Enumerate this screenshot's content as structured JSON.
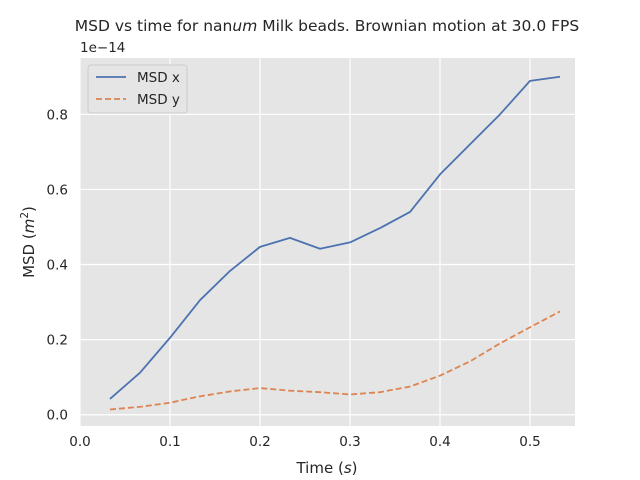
{
  "chart_data": {
    "type": "line",
    "title_parts": [
      "MSD vs time for nan",
      "um",
      " Milk beads. Brownian motion at 30.0 FPS"
    ],
    "xlabel_parts": [
      "Time (",
      "s",
      ")"
    ],
    "ylabel_parts": [
      "MSD (",
      "m",
      "2",
      ")"
    ],
    "offset_text": "1e−14",
    "xlim": [
      0.0,
      0.55
    ],
    "ylim": [
      -0.03,
      0.95
    ],
    "xticks": [
      0.0,
      0.1,
      0.2,
      0.3,
      0.4,
      0.5
    ],
    "xtick_labels": [
      "0.0",
      "0.1",
      "0.2",
      "0.3",
      "0.4",
      "0.5"
    ],
    "yticks": [
      0.0,
      0.2,
      0.4,
      0.6,
      0.8
    ],
    "ytick_labels": [
      "0.0",
      "0.2",
      "0.4",
      "0.6",
      "0.8"
    ],
    "grid": true,
    "legend_position": "upper-left",
    "x": [
      0.0333,
      0.0667,
      0.1,
      0.1333,
      0.1667,
      0.2,
      0.2333,
      0.2667,
      0.3,
      0.3333,
      0.3667,
      0.4,
      0.4333,
      0.4667,
      0.5,
      0.5333
    ],
    "series": [
      {
        "name": "MSD x",
        "color": "#4c72b0",
        "style": "solid",
        "values": [
          0.042,
          0.112,
          0.205,
          0.305,
          0.383,
          0.447,
          0.471,
          0.442,
          0.459,
          0.497,
          0.54,
          0.64,
          0.72,
          0.8,
          0.889,
          0.9
        ]
      },
      {
        "name": "MSD y",
        "color": "#dd8452",
        "style": "dashed",
        "values": [
          0.014,
          0.021,
          0.032,
          0.049,
          0.062,
          0.071,
          0.064,
          0.06,
          0.054,
          0.06,
          0.075,
          0.104,
          0.142,
          0.19,
          0.233,
          0.275
        ]
      }
    ]
  }
}
